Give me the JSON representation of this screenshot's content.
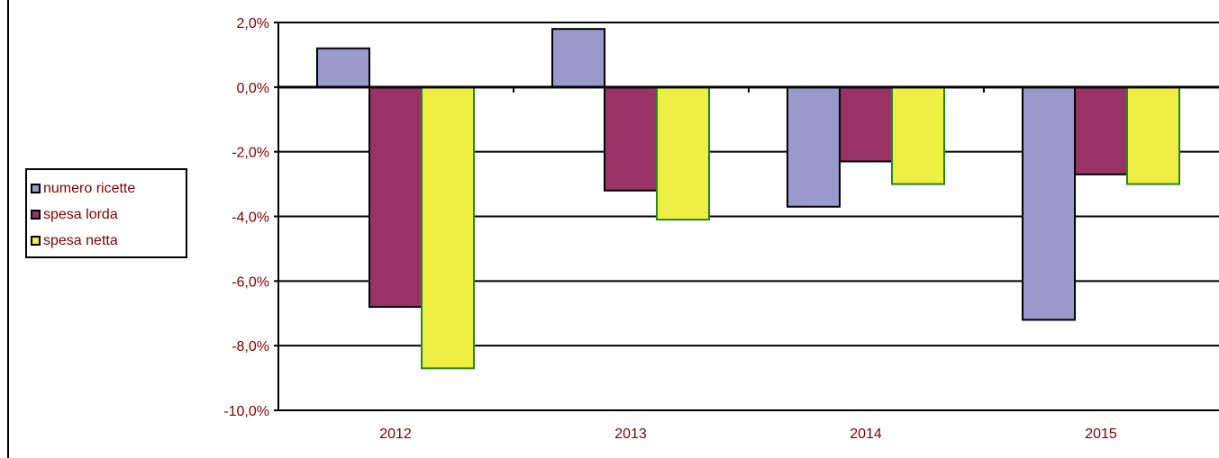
{
  "chart_data": {
    "type": "bar",
    "categories": [
      "2012",
      "2013",
      "2014",
      "2015"
    ],
    "series": [
      {
        "name": "numero ricette",
        "values": [
          1.2,
          1.8,
          -3.7,
          -7.2
        ],
        "color": "#9999cc",
        "stroke": "#000000"
      },
      {
        "name": "spesa lorda",
        "values": [
          -6.8,
          -3.2,
          -2.3,
          -2.7
        ],
        "color": "#993366",
        "stroke": "#000000"
      },
      {
        "name": "spesa netta",
        "values": [
          -8.7,
          -4.1,
          -3.0,
          -3.0
        ],
        "color": "#eeee44",
        "stroke": "#228822"
      }
    ],
    "ylim": [
      -10,
      2
    ],
    "yticks": [
      2,
      0,
      -2,
      -4,
      -6,
      -8,
      -10
    ],
    "ytick_labels": [
      "2,0%",
      "0,0%",
      "-2,0%",
      "-4,0%",
      "-6,0%",
      "-8,0%",
      "-10,0%"
    ],
    "grid": true,
    "legend_position": "left",
    "title": "",
    "xlabel": "",
    "ylabel": ""
  }
}
